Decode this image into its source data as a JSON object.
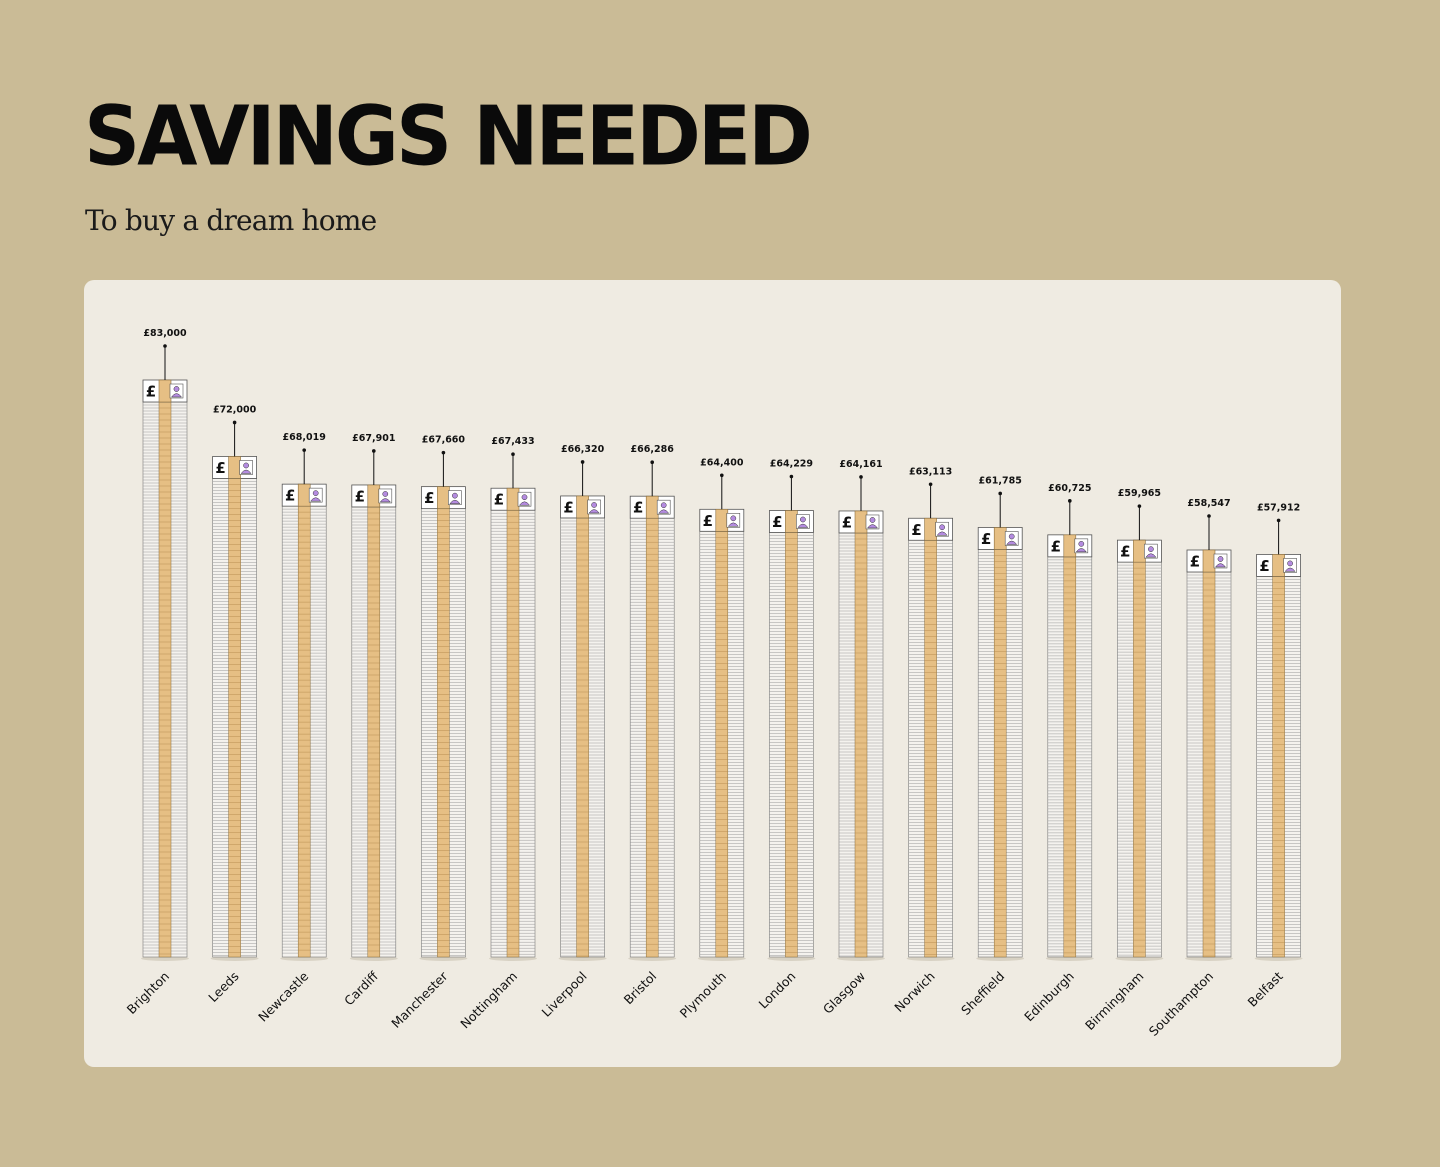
{
  "header": {
    "title": "SAVINGS NEEDED",
    "subtitle": "To buy a dream home"
  },
  "colors": {
    "background": "#cabb96",
    "card": "#efebe2",
    "stack_band": "#e6bf84",
    "note_accent": "#b48be0",
    "text": "#0a0a0a"
  },
  "chart_data": {
    "type": "bar",
    "title": "SAVINGS NEEDED",
    "subtitle": "To buy a dream home",
    "xlabel": "",
    "ylabel": "",
    "grid": false,
    "legend": "none",
    "categories": [
      "Brighton",
      "Leeds",
      "Newcastle",
      "Cardiff",
      "Manchester",
      "Nottingham",
      "Liverpool",
      "Bristol",
      "Plymouth",
      "London",
      "Glasgow",
      "Norwich",
      "Sheffield",
      "Edinburgh",
      "Birmingham",
      "Southampton",
      "Belfast"
    ],
    "values": [
      83000,
      72000,
      68019,
      67901,
      67660,
      67433,
      66320,
      66286,
      64400,
      64229,
      64161,
      63113,
      61785,
      60725,
      59965,
      58547,
      57912
    ],
    "value_labels": [
      "£83,000",
      "£72,000",
      "£68,019",
      "£67,901",
      "£67,660",
      "£67,433",
      "£66,320",
      "£66,286",
      "£64,400",
      "£64,229",
      "£64,161",
      "£63,113",
      "£61,785",
      "£60,725",
      "£59,965",
      "£58,547",
      "£57,912"
    ],
    "currency_symbol": "£",
    "bar_icon": "banknote-stack-icon"
  }
}
